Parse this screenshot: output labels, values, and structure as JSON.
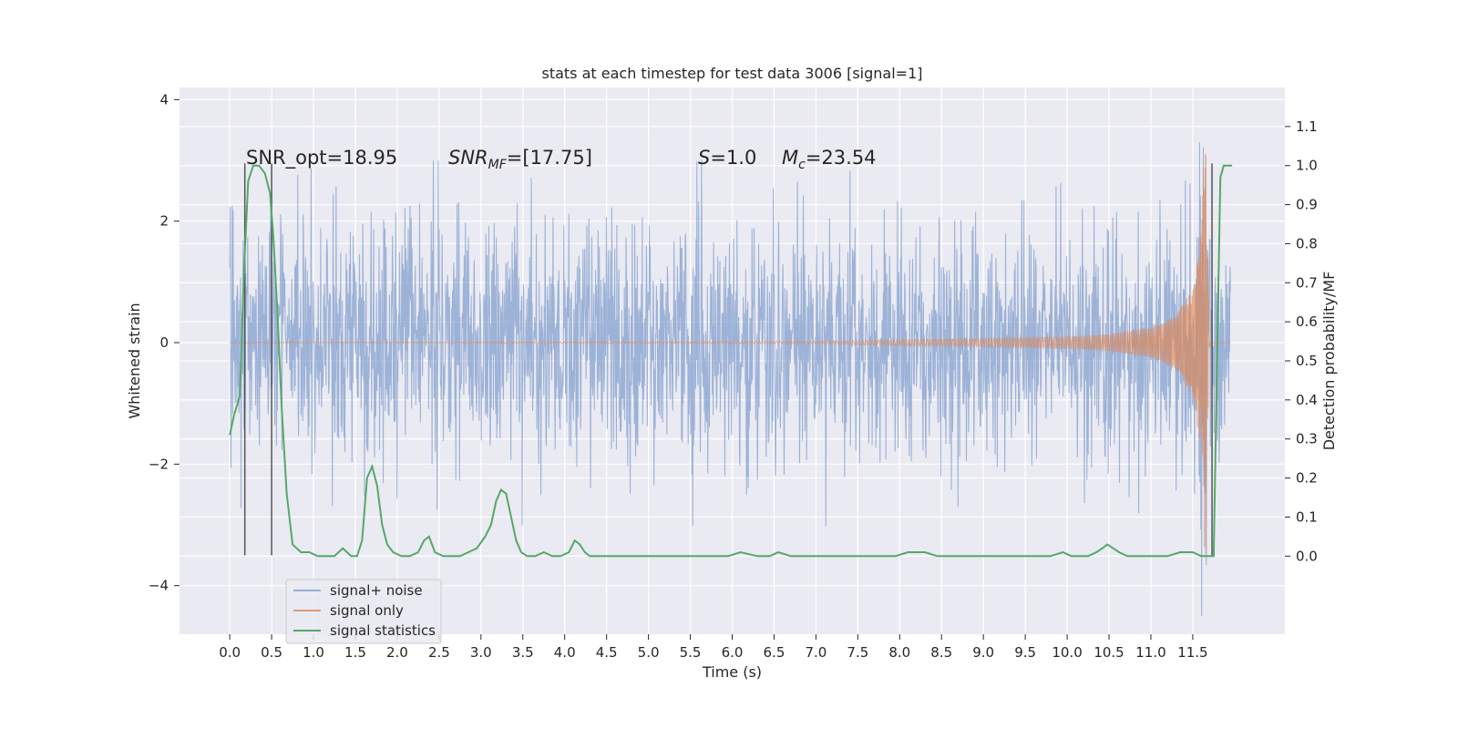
{
  "chart_data": {
    "type": "line",
    "title": "stats at each timestep for test data 3006 [signal=1]",
    "xlabel": "Time (s)",
    "ylabel": "Whitened strain",
    "y2label": "Detection probability/MF",
    "xlim": [
      -0.6,
      12.6
    ],
    "ylim": [
      -4.8,
      4.2
    ],
    "y2lim": [
      -0.2,
      1.2
    ],
    "xticks": [
      0.0,
      0.5,
      1.0,
      1.5,
      2.0,
      2.5,
      3.0,
      3.5,
      4.0,
      4.5,
      5.0,
      5.5,
      6.0,
      6.5,
      7.0,
      7.5,
      8.0,
      8.5,
      9.0,
      9.5,
      10.0,
      10.5,
      11.0,
      11.5
    ],
    "xtick_labels": [
      "0.0",
      "0.5",
      "1.0",
      "1.5",
      "2.0",
      "2.5",
      "3.0",
      "3.5",
      "4.0",
      "4.5",
      "5.0",
      "5.5",
      "6.0",
      "6.5",
      "7.0",
      "7.5",
      "8.0",
      "8.5",
      "9.0",
      "9.5",
      "10.0",
      "10.5",
      "11.0",
      "11.5"
    ],
    "yticks": [
      -4,
      -2,
      0,
      2,
      4
    ],
    "ytick_labels": [
      "−4",
      "−2",
      "0",
      "2",
      "4"
    ],
    "y2ticks": [
      0.0,
      0.1,
      0.2,
      0.3,
      0.4,
      0.5,
      0.6,
      0.7,
      0.8,
      0.9,
      1.0,
      1.1
    ],
    "y2tick_labels": [
      "0.0",
      "0.1",
      "0.2",
      "0.3",
      "0.4",
      "0.5",
      "0.6",
      "0.7",
      "0.8",
      "0.9",
      "1.0",
      "1.1"
    ],
    "grid": true,
    "legend_position": "bottom-left",
    "annotations": [
      {
        "label": "SNR_opt",
        "value": "=18.95"
      },
      {
        "label": "SNR",
        "sub": "MF",
        "value": "=[17.75]"
      },
      {
        "label": "S",
        "value": "=1.0"
      },
      {
        "label": "M",
        "sub": "c",
        "value": "=23.54"
      }
    ],
    "series": [
      {
        "name": "signal+ noise",
        "color": "#7f9ccc",
        "style": "whitened noise with signal, amplitude about ±1.6 (peaks ±3)",
        "x_range": [
          0.0,
          11.95
        ],
        "envelope": 1.6,
        "peak": 3.0
      },
      {
        "name": "signal only",
        "color": "#dd8452",
        "style": "chirp with growing amplitude ending at merger",
        "x": [
          0.0,
          7.0,
          8.0,
          9.0,
          10.0,
          10.5,
          11.0,
          11.3,
          11.5,
          11.6,
          11.65,
          11.7,
          11.95
        ],
        "amplitude": [
          0.0,
          0.02,
          0.05,
          0.07,
          0.1,
          0.14,
          0.25,
          0.45,
          0.9,
          1.8,
          3.8,
          0.0,
          0.0
        ]
      },
      {
        "name": "signal statistics",
        "color": "#55a868",
        "axis": "secondary",
        "x": [
          0.0,
          0.05,
          0.12,
          0.17,
          0.22,
          0.28,
          0.35,
          0.42,
          0.48,
          0.52,
          0.57,
          0.62,
          0.68,
          0.75,
          0.85,
          0.95,
          1.05,
          1.15,
          1.25,
          1.35,
          1.45,
          1.52,
          1.58,
          1.64,
          1.7,
          1.76,
          1.82,
          1.88,
          1.95,
          2.05,
          2.15,
          2.25,
          2.32,
          2.38,
          2.45,
          2.55,
          2.65,
          2.75,
          2.85,
          2.95,
          3.05,
          3.12,
          3.18,
          3.24,
          3.3,
          3.36,
          3.42,
          3.48,
          3.55,
          3.65,
          3.75,
          3.85,
          3.95,
          4.05,
          4.12,
          4.18,
          4.24,
          4.3,
          4.4,
          4.55,
          4.7,
          4.85,
          5.0,
          5.2,
          5.4,
          5.6,
          5.8,
          5.95,
          6.1,
          6.3,
          6.45,
          6.55,
          6.7,
          6.9,
          7.1,
          7.3,
          7.5,
          7.65,
          7.8,
          7.95,
          8.1,
          8.2,
          8.3,
          8.45,
          8.6,
          8.8,
          9.0,
          9.2,
          9.4,
          9.6,
          9.8,
          9.95,
          10.05,
          10.15,
          10.25,
          10.35,
          10.42,
          10.48,
          10.55,
          10.62,
          10.72,
          10.85,
          11.0,
          11.2,
          11.35,
          11.5,
          11.6,
          11.7,
          11.75,
          11.8,
          11.83,
          11.87,
          11.92,
          11.97
        ],
        "values": [
          0.31,
          0.36,
          0.41,
          0.73,
          0.96,
          1.0,
          1.0,
          0.98,
          0.93,
          0.82,
          0.62,
          0.38,
          0.16,
          0.03,
          0.01,
          0.01,
          0.0,
          0.0,
          0.0,
          0.02,
          0.0,
          0.0,
          0.04,
          0.2,
          0.23,
          0.18,
          0.08,
          0.03,
          0.01,
          0.0,
          0.0,
          0.01,
          0.04,
          0.05,
          0.01,
          0.0,
          0.0,
          0.0,
          0.01,
          0.02,
          0.05,
          0.08,
          0.14,
          0.17,
          0.16,
          0.1,
          0.04,
          0.01,
          0.0,
          0.0,
          0.01,
          0.0,
          0.0,
          0.01,
          0.04,
          0.03,
          0.01,
          0.0,
          0.0,
          0.0,
          0.0,
          0.0,
          0.0,
          0.0,
          0.0,
          0.0,
          0.0,
          0.0,
          0.01,
          0.0,
          0.0,
          0.01,
          0.0,
          0.0,
          0.0,
          0.0,
          0.0,
          0.0,
          0.0,
          0.0,
          0.01,
          0.01,
          0.01,
          0.0,
          0.0,
          0.0,
          0.0,
          0.0,
          0.0,
          0.0,
          0.0,
          0.01,
          0.0,
          0.0,
          0.0,
          0.01,
          0.02,
          0.03,
          0.02,
          0.01,
          0.0,
          0.0,
          0.0,
          0.0,
          0.01,
          0.01,
          0.0,
          0.0,
          0.0,
          0.62,
          0.97,
          1.0,
          1.0,
          1.0
        ]
      }
    ],
    "vertical_markers": {
      "color": "#555555",
      "x": [
        0.18,
        0.5,
        11.73
      ],
      "y_range": [
        -3.5,
        2.95
      ]
    }
  }
}
